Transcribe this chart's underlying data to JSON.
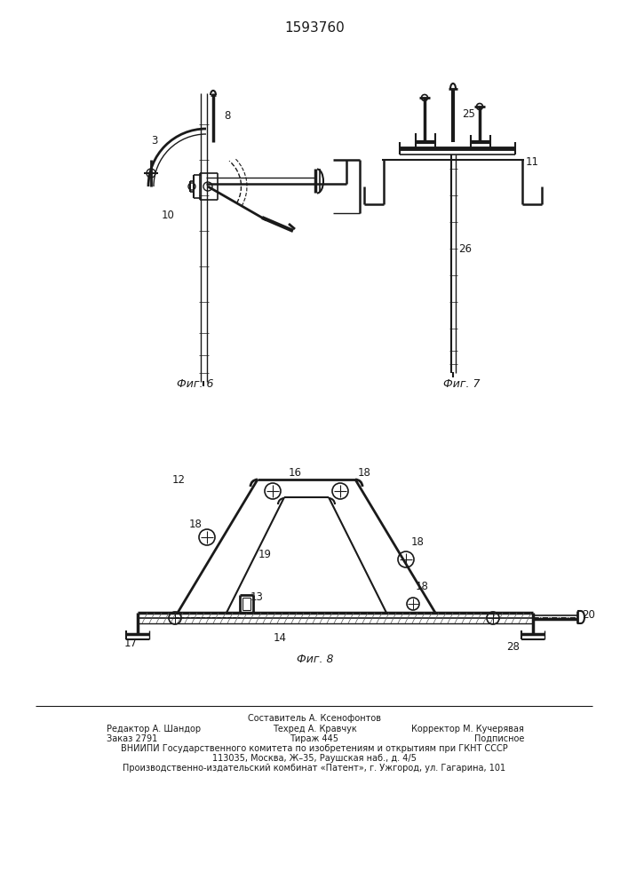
{
  "title": "1593760",
  "title_fontsize": 11,
  "bg_color": "#ffffff",
  "line_color": "#1a1a1a",
  "footer_lines": [
    "Составитель А. Ксенофонтов",
    "Редактор А. Шандор          Техред А. Кравчук          Корректор М. Кучерявая",
    "Заказ 2791                       Тираж 445                        Подписное",
    "ВНИИПИ Государственного комитета по изобретениям и открытиям при ГКНТ СССР",
    "113035, Москва, Ж–35, Раушская наб., д. 4/5",
    "Производственно-издательский комбинат «Патент», г. Ужгород, ул. Гагарина, 101"
  ],
  "fig6_label": "Фиг. 6",
  "fig7_label": "Фиг. 7",
  "fig8_label": "Фиг. 8"
}
